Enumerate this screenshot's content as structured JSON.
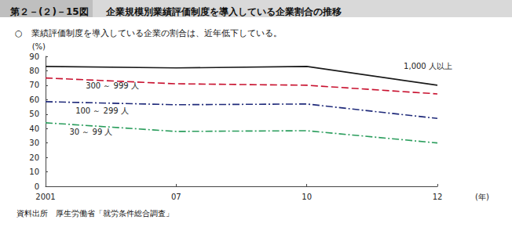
{
  "chart_data": {
    "type": "line",
    "figure_label": "第２－(２)－15図",
    "title": "企業規模別業績評価制度を導入している企業割合の推移",
    "subtitle": "○　業績評価制度を導入している企業の割合は、近年低下している。",
    "source": "資料出所　厚生労働省「就労条件総合調査」",
    "x_label": "(年)",
    "y_label": "(%)",
    "categories": [
      "2001",
      "07",
      "10",
      "12"
    ],
    "series": [
      {
        "name": "1,000 人以上",
        "color": "#1a1a1a",
        "line_style": "solid",
        "values": [
          83,
          82,
          83,
          70
        ]
      },
      {
        "name": "300 ～ 999 人",
        "color": "#c8102e",
        "line_style": "dashed",
        "values": [
          75,
          71,
          70,
          64
        ]
      },
      {
        "name": "100 ～ 299 人",
        "color": "#1f2a7a",
        "line_style": "dashdot",
        "values": [
          58.6,
          56.5,
          57,
          47
        ]
      },
      {
        "name": "30 ～ 99 人",
        "color": "#2a9d5c",
        "line_style": "dashdot",
        "values": [
          44,
          38,
          38.5,
          30
        ]
      }
    ],
    "ylim": [
      0,
      90
    ],
    "yticks": [
      0,
      10,
      20,
      30,
      40,
      50,
      60,
      70,
      80,
      90
    ],
    "grid": false,
    "legend": "none"
  }
}
